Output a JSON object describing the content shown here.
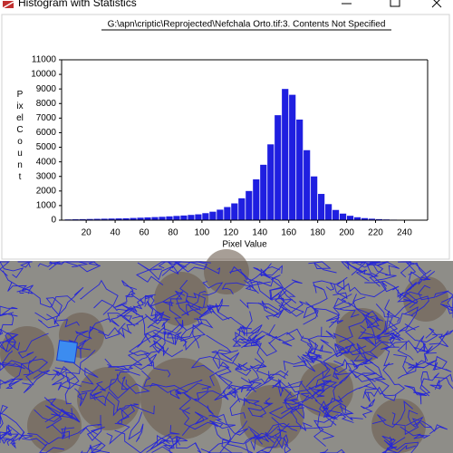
{
  "window": {
    "title": "Histogram with Statistics"
  },
  "chart_data": {
    "type": "histogram",
    "title": "G:\\apn\\criptic\\Reprojected\\Nefchala Orto.tif:3. Contents Not Specified",
    "x_label": "Pixel Value",
    "y_label": "Pixel Count",
    "color": "#1f1fe0",
    "bins": [
      5,
      10,
      15,
      20,
      25,
      30,
      35,
      40,
      45,
      50,
      55,
      60,
      65,
      70,
      75,
      80,
      85,
      90,
      95,
      100,
      105,
      110,
      115,
      120,
      125,
      130,
      135,
      140,
      145,
      150,
      155,
      160,
      165,
      170,
      175,
      180,
      185,
      190,
      195,
      200,
      205,
      210,
      215,
      220,
      225,
      230,
      235,
      240,
      245,
      250,
      255
    ],
    "values": [
      50,
      60,
      70,
      80,
      90,
      100,
      110,
      120,
      130,
      150,
      170,
      190,
      210,
      230,
      260,
      290,
      320,
      360,
      400,
      480,
      580,
      720,
      900,
      1150,
      1500,
      2000,
      2800,
      3800,
      5200,
      7200,
      9000,
      8600,
      6900,
      4800,
      3000,
      1800,
      1100,
      700,
      450,
      300,
      200,
      140,
      100,
      70,
      50,
      35,
      25,
      15,
      10,
      5
    ],
    "xlim": [
      3,
      256
    ],
    "ylim": [
      0,
      11000
    ],
    "xticks": [
      20,
      40,
      60,
      80,
      100,
      120,
      140,
      160,
      180,
      200,
      220,
      240
    ],
    "yticks": [
      0,
      1000,
      2000,
      3000,
      4000,
      5000,
      6000,
      7000,
      8000,
      9000,
      10000,
      11000
    ]
  }
}
